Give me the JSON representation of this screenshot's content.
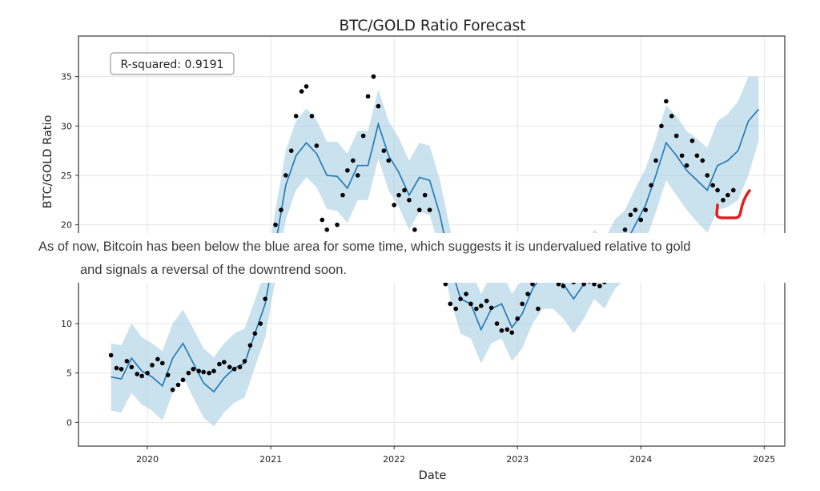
{
  "chart_data": {
    "type": "line",
    "title": "BTC/GOLD Ratio Forecast",
    "xlabel": "Date",
    "ylabel": "BTC/GOLD Ratio",
    "xlim": [
      "2019-06-10",
      "2025-03-01"
    ],
    "ylim": [
      -2.4,
      39.1
    ],
    "x_ticks": [
      "2020",
      "2021",
      "2022",
      "2023",
      "2024",
      "2025"
    ],
    "y_ticks": [
      0,
      5,
      10,
      15,
      20,
      25,
      30,
      35
    ],
    "grid": true,
    "annotation": "R-squared: 0.9191",
    "colors": {
      "forecast": "#1f77b4",
      "band": "#a6cde3",
      "actual": "#000000",
      "marker": "#e02020"
    },
    "forecast": {
      "dates": [
        "2019-09",
        "2019-10",
        "2019-11",
        "2019-12",
        "2020-01",
        "2020-02",
        "2020-03",
        "2020-04",
        "2020-05",
        "2020-06",
        "2020-07",
        "2020-08",
        "2020-09",
        "2020-10",
        "2020-11",
        "2020-12",
        "2021-01",
        "2021-02",
        "2021-03",
        "2021-04",
        "2021-05",
        "2021-06",
        "2021-07",
        "2021-08",
        "2021-09",
        "2021-10",
        "2021-11",
        "2021-12",
        "2022-01",
        "2022-02",
        "2022-03",
        "2022-04",
        "2022-05",
        "2022-06",
        "2022-07",
        "2022-08",
        "2022-09",
        "2022-10",
        "2022-11",
        "2022-12",
        "2023-01",
        "2023-02",
        "2023-03",
        "2023-04",
        "2023-05",
        "2023-06",
        "2023-07",
        "2023-08",
        "2023-09",
        "2023-10",
        "2023-11",
        "2023-12",
        "2024-01",
        "2024-02",
        "2024-03",
        "2024-04",
        "2024-05",
        "2024-06",
        "2024-07",
        "2024-08",
        "2024-09",
        "2024-10",
        "2024-11",
        "2024-12"
      ],
      "yhat": [
        4.6,
        4.4,
        6.5,
        5.2,
        4.6,
        3.7,
        6.5,
        8.0,
        6.0,
        4.0,
        3.1,
        4.5,
        5.5,
        6.0,
        9.0,
        12.0,
        18.0,
        24.0,
        27.0,
        28.3,
        27.2,
        25.0,
        24.9,
        23.7,
        26.0,
        26.0,
        30.2,
        27.0,
        25.3,
        23.0,
        24.8,
        24.5,
        21.0,
        16.0,
        12.5,
        12.0,
        9.4,
        11.5,
        12.0,
        9.6,
        11.0,
        13.5,
        15.0,
        15.0,
        14.0,
        12.5,
        14.0,
        16.0,
        15.0,
        17.0,
        18.0,
        20.0,
        22.0,
        25.0,
        28.3,
        27.0,
        25.5,
        24.5,
        23.5,
        26.0,
        26.5,
        27.5,
        30.5,
        31.7
      ],
      "lower": [
        1.2,
        1.0,
        3.0,
        1.8,
        1.2,
        0.2,
        3.0,
        4.6,
        2.5,
        0.5,
        -0.4,
        1.0,
        2.0,
        2.5,
        5.6,
        8.6,
        14.5,
        20.5,
        23.5,
        24.8,
        23.8,
        21.6,
        21.4,
        20.2,
        22.5,
        22.5,
        26.7,
        23.5,
        21.8,
        19.5,
        21.3,
        21.0,
        17.5,
        12.5,
        9.0,
        8.5,
        6.0,
        8.0,
        8.5,
        6.2,
        7.5,
        10.0,
        11.5,
        11.5,
        10.5,
        9.0,
        10.5,
        12.5,
        11.5,
        13.5,
        14.5,
        16.3,
        18.3,
        21.3,
        24.5,
        23.0,
        21.5,
        20.3,
        19.2,
        21.5,
        21.8,
        22.5,
        25.0,
        28.5
      ],
      "upper": [
        8.0,
        7.8,
        10.0,
        8.6,
        8.0,
        7.2,
        10.0,
        11.4,
        9.5,
        7.5,
        6.6,
        8.0,
        9.0,
        9.5,
        12.4,
        15.4,
        21.5,
        27.5,
        30.5,
        31.8,
        30.6,
        28.4,
        28.4,
        27.2,
        29.5,
        29.5,
        33.7,
        30.5,
        28.8,
        26.5,
        28.3,
        28.0,
        24.5,
        19.5,
        16.0,
        15.5,
        13.0,
        15.0,
        15.5,
        13.0,
        14.5,
        17.0,
        18.5,
        18.5,
        17.5,
        16.0,
        17.5,
        19.5,
        18.5,
        20.5,
        21.5,
        23.7,
        25.7,
        28.7,
        32.1,
        31.0,
        29.5,
        28.7,
        27.8,
        30.5,
        31.2,
        32.5,
        35.0,
        35.0
      ]
    },
    "actual": {
      "dates": [
        "2019-09-15",
        "2019-10-01",
        "2019-10-15",
        "2019-11-01",
        "2019-11-15",
        "2019-12-01",
        "2019-12-15",
        "2020-01-01",
        "2020-01-15",
        "2020-02-01",
        "2020-02-15",
        "2020-03-01",
        "2020-03-15",
        "2020-04-01",
        "2020-04-15",
        "2020-05-01",
        "2020-05-15",
        "2020-06-01",
        "2020-06-15",
        "2020-07-01",
        "2020-07-15",
        "2020-08-01",
        "2020-08-15",
        "2020-09-01",
        "2020-09-15",
        "2020-10-01",
        "2020-10-15",
        "2020-11-01",
        "2020-11-15",
        "2020-12-01",
        "2020-12-15",
        "2021-01-01",
        "2021-01-15",
        "2021-02-01",
        "2021-02-15",
        "2021-03-01",
        "2021-03-15",
        "2021-04-01",
        "2021-04-15",
        "2021-05-01",
        "2021-05-15",
        "2021-06-01",
        "2021-06-15",
        "2021-07-01",
        "2021-07-15",
        "2021-08-01",
        "2021-08-15",
        "2021-09-01",
        "2021-09-15",
        "2021-10-01",
        "2021-10-15",
        "2021-11-01",
        "2021-11-15",
        "2021-12-01",
        "2021-12-15",
        "2022-01-01",
        "2022-01-15",
        "2022-02-01",
        "2022-02-15",
        "2022-03-01",
        "2022-03-15",
        "2022-04-01",
        "2022-04-15",
        "2022-05-01",
        "2022-05-15",
        "2022-06-01",
        "2022-06-15",
        "2022-07-01",
        "2022-07-15",
        "2022-08-01",
        "2022-08-15",
        "2022-09-01",
        "2022-09-15",
        "2022-10-01",
        "2022-10-15",
        "2022-11-01",
        "2022-11-15",
        "2022-12-01",
        "2022-12-15",
        "2023-01-01",
        "2023-01-15",
        "2023-02-01",
        "2023-02-15",
        "2023-03-01",
        "2023-03-15",
        "2023-04-01",
        "2023-04-15",
        "2023-05-01",
        "2023-05-15",
        "2023-06-01",
        "2023-06-15",
        "2023-07-01",
        "2023-07-15",
        "2023-08-01",
        "2023-08-15",
        "2023-09-01",
        "2023-09-15",
        "2023-10-01",
        "2023-10-15",
        "2023-11-01",
        "2023-11-15",
        "2023-12-01",
        "2023-12-15",
        "2024-01-01",
        "2024-01-15",
        "2024-02-01",
        "2024-02-15",
        "2024-03-01",
        "2024-03-15",
        "2024-04-01",
        "2024-04-15",
        "2024-05-01",
        "2024-05-15",
        "2024-06-01",
        "2024-06-15",
        "2024-07-01",
        "2024-07-15",
        "2024-08-01",
        "2024-08-15",
        "2024-09-01",
        "2024-09-15",
        "2024-10-01"
      ],
      "values": [
        6.8,
        5.5,
        5.4,
        6.2,
        5.6,
        4.9,
        4.7,
        5.0,
        5.8,
        6.4,
        6.0,
        4.8,
        3.3,
        3.8,
        4.3,
        5.0,
        5.4,
        5.2,
        5.1,
        5.0,
        5.2,
        5.9,
        6.1,
        5.6,
        5.4,
        5.6,
        6.2,
        7.8,
        9.0,
        10.0,
        12.5,
        17.0,
        20.0,
        21.5,
        25.0,
        27.5,
        31.0,
        33.5,
        34.0,
        31.0,
        28.0,
        20.5,
        19.5,
        18.5,
        20.0,
        23.0,
        25.5,
        26.5,
        25.0,
        29.0,
        33.0,
        35.0,
        32.0,
        27.5,
        26.5,
        22.0,
        23.0,
        23.5,
        22.5,
        19.5,
        21.5,
        23.0,
        21.5,
        18.5,
        16.0,
        14.0,
        12.0,
        11.5,
        12.5,
        13.0,
        12.0,
        11.5,
        11.8,
        12.3,
        11.6,
        10.0,
        9.3,
        9.4,
        9.1,
        10.5,
        12.0,
        13.0,
        14.0,
        11.5,
        14.5,
        15.5,
        14.8,
        14.0,
        13.8,
        14.5,
        14.2,
        14.5,
        14.0,
        14.3,
        14.0,
        13.8,
        14.2,
        15.0,
        17.0,
        18.5,
        19.5,
        21.0,
        21.5,
        20.5,
        21.5,
        24.0,
        26.5,
        30.0,
        32.5,
        31.0,
        29.0,
        27.0,
        26.0,
        28.5,
        27.0,
        26.5,
        25.0,
        24.0,
        23.5,
        22.5,
        23.0,
        23.5
      ]
    }
  },
  "caption": {
    "line1": "As of now, Bitcoin has been below the blue area for some time, which suggests it is undervalued relative to gold",
    "line2": "and signals a reversal of the downtrend soon."
  }
}
